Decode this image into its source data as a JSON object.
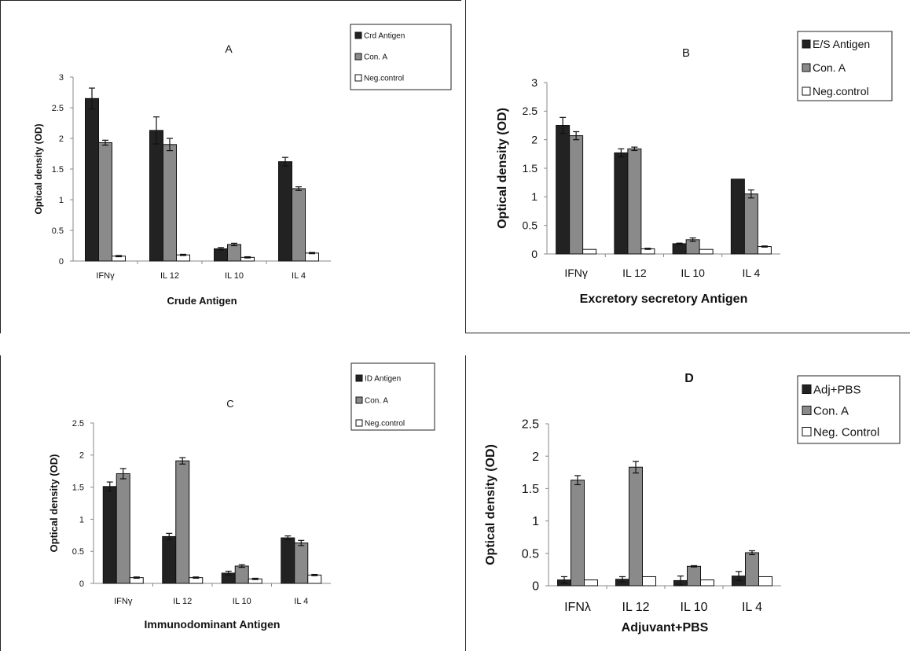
{
  "chart_data": [
    {
      "type": "bar",
      "panel_label": "A",
      "xlabel": "Crude Antigen",
      "ylabel": "Optical density (OD)",
      "categories": [
        "IFNγ",
        "IL 12",
        "IL 10",
        "IL 4"
      ],
      "y_ticks": [
        "0",
        "0.5",
        "1",
        "1.5",
        "2",
        "2.5",
        "3"
      ],
      "ylim": [
        0,
        3
      ],
      "legend_position": "top-right",
      "grid": false,
      "series": [
        {
          "name": "Crd Antigen",
          "color": "#222222",
          "values": [
            2.65,
            2.13,
            0.2,
            1.62
          ],
          "errors": [
            0.17,
            0.22,
            0.02,
            0.07
          ]
        },
        {
          "name": "Con. A",
          "color": "#8a8a8a",
          "values": [
            1.93,
            1.9,
            0.27,
            1.18
          ],
          "errors": [
            0.04,
            0.1,
            0.02,
            0.03
          ]
        },
        {
          "name": "Neg.control",
          "color": "#ffffff",
          "values": [
            0.08,
            0.1,
            0.06,
            0.13
          ],
          "errors": [
            0.01,
            0.01,
            0.01,
            0.01
          ]
        }
      ]
    },
    {
      "type": "bar",
      "panel_label": "B",
      "xlabel": "Excretory secretory Antigen",
      "ylabel": "Optical density (OD)",
      "categories": [
        "IFNγ",
        "IL 12",
        "IL 10",
        "IL 4"
      ],
      "y_ticks": [
        "0",
        "0.5",
        "1",
        "1.5",
        "2",
        "2.5",
        "3"
      ],
      "ylim": [
        0,
        3
      ],
      "legend_position": "top-right",
      "grid": false,
      "series": [
        {
          "name": "E/S Antigen",
          "color": "#222222",
          "values": [
            2.25,
            1.77,
            0.18,
            1.31
          ],
          "errors": [
            0.14,
            0.07,
            0.01,
            0.0
          ]
        },
        {
          "name": "Con. A",
          "color": "#8a8a8a",
          "values": [
            2.07,
            1.84,
            0.25,
            1.05
          ],
          "errors": [
            0.07,
            0.03,
            0.03,
            0.07
          ]
        },
        {
          "name": "Neg.control",
          "color": "#ffffff",
          "values": [
            0.08,
            0.09,
            0.08,
            0.13
          ],
          "errors": [
            0.0,
            0.01,
            0.0,
            0.01
          ]
        }
      ]
    },
    {
      "type": "bar",
      "panel_label": "C",
      "xlabel": "Immunodominant Antigen",
      "ylabel": "Optical density (OD)",
      "categories": [
        "IFNγ",
        "IL 12",
        "IL 10",
        "IL 4"
      ],
      "y_ticks": [
        "0",
        "0.5",
        "1",
        "1.5",
        "2",
        "2.5"
      ],
      "ylim": [
        0,
        2.5
      ],
      "legend_position": "top-right",
      "grid": false,
      "series": [
        {
          "name": "ID Antigen",
          "color": "#222222",
          "values": [
            1.51,
            0.73,
            0.16,
            0.71
          ],
          "errors": [
            0.07,
            0.05,
            0.03,
            0.03
          ]
        },
        {
          "name": "Con. A",
          "color": "#8a8a8a",
          "values": [
            1.71,
            1.91,
            0.27,
            0.63
          ],
          "errors": [
            0.08,
            0.05,
            0.02,
            0.04
          ]
        },
        {
          "name": "Neg.control",
          "color": "#ffffff",
          "values": [
            0.09,
            0.09,
            0.07,
            0.13
          ],
          "errors": [
            0.01,
            0.01,
            0.01,
            0.01
          ]
        }
      ]
    },
    {
      "type": "bar",
      "panel_label": "D",
      "xlabel": "Adjuvant+PBS",
      "ylabel": "Optical density (OD)",
      "categories": [
        "IFNλ",
        "IL 12",
        "IL 10",
        "IL 4"
      ],
      "y_ticks": [
        "0",
        "0.5",
        "1",
        "1.5",
        "2",
        "2.5"
      ],
      "ylim": [
        0,
        2.5
      ],
      "legend_position": "top-right",
      "grid": false,
      "series": [
        {
          "name": "Adj+PBS",
          "color": "#222222",
          "values": [
            0.09,
            0.1,
            0.08,
            0.15
          ],
          "errors": [
            0.05,
            0.04,
            0.07,
            0.07
          ]
        },
        {
          "name": "Con. A",
          "color": "#8a8a8a",
          "values": [
            1.63,
            1.83,
            0.3,
            0.51
          ],
          "errors": [
            0.07,
            0.09,
            0.01,
            0.03
          ]
        },
        {
          "name": "Neg. Control",
          "color": "#ffffff",
          "values": [
            0.09,
            0.14,
            0.09,
            0.14
          ],
          "errors": [
            0.0,
            0.0,
            0.0,
            0.0
          ]
        }
      ]
    }
  ]
}
